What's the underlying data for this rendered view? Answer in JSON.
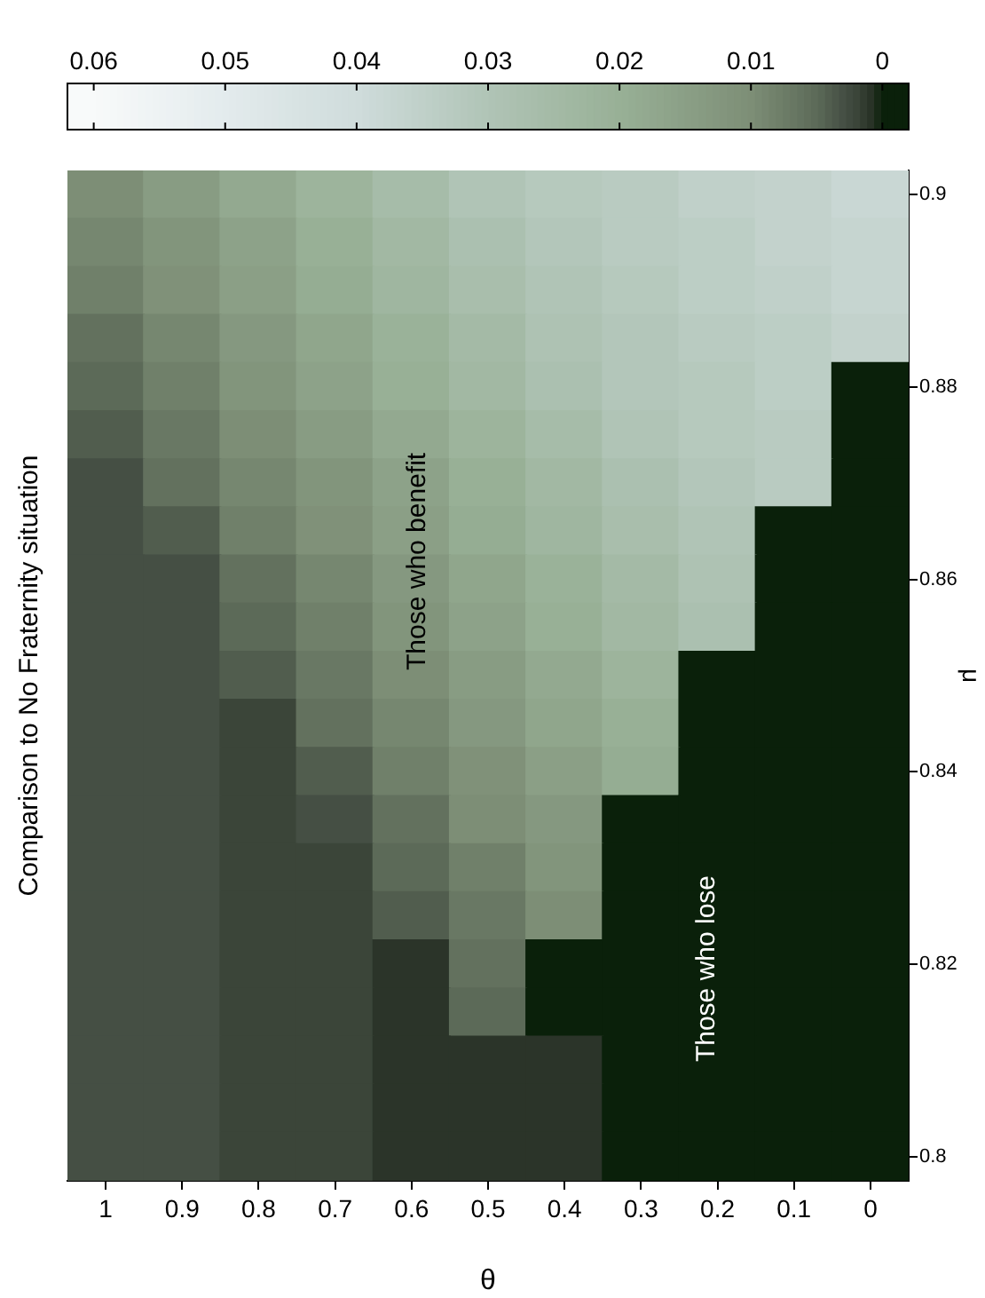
{
  "chart_data": {
    "type": "heatmap",
    "title": "Comparison to No Fraternity situation",
    "xlabel": "θ",
    "ylabel": "μ",
    "categories": [
      "1",
      "0.9",
      "0.8",
      "0.7",
      "0.6",
      "0.5",
      "0.4",
      "0.3",
      "0.2",
      "0.1",
      "0"
    ],
    "y_categories": [
      "0.9",
      null,
      null,
      null,
      "0.88",
      null,
      null,
      null,
      "0.86",
      null,
      null,
      null,
      "0.84",
      null,
      null,
      null,
      "0.82",
      null,
      null,
      null,
      "0.8"
    ],
    "cells": [
      [
        0.01,
        0.014,
        0.018,
        0.022,
        0.026,
        0.03,
        0.032,
        0.033,
        0.035,
        0.036,
        0.038
      ],
      [
        0.009,
        0.012,
        0.016,
        0.02,
        0.024,
        0.028,
        0.031,
        0.033,
        0.034,
        0.036,
        0.037
      ],
      [
        0.008,
        0.011,
        0.015,
        0.019,
        0.023,
        0.027,
        0.03,
        0.032,
        0.034,
        0.035,
        0.037
      ],
      [
        0.006,
        0.009,
        0.013,
        0.017,
        0.021,
        0.025,
        0.029,
        0.031,
        0.033,
        0.034,
        0.036
      ],
      [
        0.005,
        0.008,
        0.012,
        0.016,
        0.02,
        0.024,
        0.028,
        0.031,
        0.032,
        0.034,
        0
      ],
      [
        0.004,
        0.007,
        0.01,
        0.014,
        0.018,
        0.022,
        0.026,
        0.03,
        0.032,
        0.033,
        0
      ],
      [
        0.003,
        0.006,
        0.009,
        0.012,
        0.016,
        0.02,
        0.024,
        0.028,
        0.031,
        0.033,
        0
      ],
      [
        0.003,
        0.004,
        0.008,
        0.011,
        0.015,
        0.019,
        0.023,
        0.027,
        0.03,
        0,
        0
      ],
      [
        0.003,
        0.003,
        0.006,
        0.009,
        0.013,
        0.017,
        0.021,
        0.025,
        0.029,
        0,
        0
      ],
      [
        0.003,
        0.003,
        0.005,
        0.008,
        0.012,
        0.016,
        0.02,
        0.024,
        0.028,
        0,
        0
      ],
      [
        0.003,
        0.003,
        0.004,
        0.007,
        0.01,
        0.014,
        0.018,
        0.022,
        0,
        0,
        0
      ],
      [
        0.003,
        0.003,
        0.002,
        0.006,
        0.009,
        0.013,
        0.017,
        0.02,
        0,
        0,
        0
      ],
      [
        0.003,
        0.003,
        0.002,
        0.004,
        0.008,
        0.011,
        0.015,
        0.019,
        0,
        0,
        0
      ],
      [
        0.003,
        0.003,
        0.002,
        0.003,
        0.006,
        0.01,
        0.013,
        0,
        0,
        0,
        0
      ],
      [
        0.003,
        0.003,
        0.002,
        0.002,
        0.005,
        0.008,
        0.012,
        0,
        0,
        0,
        0
      ],
      [
        0.003,
        0.003,
        0.002,
        0.002,
        0.004,
        0.007,
        0.01,
        0,
        0,
        0,
        0
      ],
      [
        0.003,
        0.003,
        0.002,
        0.002,
        0.001,
        0.006,
        0,
        0,
        0,
        0,
        0
      ],
      [
        0.003,
        0.003,
        0.002,
        0.002,
        0.001,
        0.005,
        0,
        0,
        0,
        0,
        0
      ],
      [
        0.003,
        0.003,
        0.002,
        0.002,
        0.001,
        0.001,
        0.001,
        0,
        0,
        0,
        0
      ],
      [
        0.003,
        0.003,
        0.002,
        0.002,
        0.001,
        0.001,
        0.001,
        0,
        0,
        0,
        0
      ],
      [
        0.003,
        0.003,
        0.002,
        0.002,
        0.001,
        0.001,
        0.001,
        0,
        0,
        0,
        0
      ]
    ],
    "clim": [
      -0.002,
      0.062
    ],
    "cticks": [
      0,
      0.01,
      0.02,
      0.03,
      0.04,
      0.05,
      0.06
    ],
    "annotations": [
      "Those who benefit",
      "Those who lose"
    ]
  }
}
